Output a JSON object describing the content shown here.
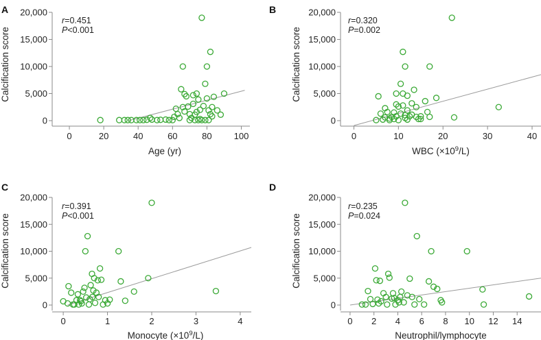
{
  "chart_data": [
    {
      "panel": "A",
      "type": "scatter",
      "xlabel": "Age (yr)",
      "ylabel": "Calcification score",
      "xlim": [
        -10,
        105
      ],
      "ylim": [
        0,
        20000
      ],
      "xticks": [
        0,
        20,
        40,
        60,
        80,
        100
      ],
      "yticks": [
        0,
        5000,
        10000,
        15000,
        20000
      ],
      "ytick_labels": [
        "0",
        "5,000",
        "10,000",
        "15,000",
        "20,000"
      ],
      "stats": {
        "r_label": "r",
        "r_value": "=0.451",
        "p_label": "P",
        "p_value": "<0.001"
      },
      "fit_line": [
        [
          34.5,
          0
        ],
        [
          102,
          5600
        ]
      ],
      "points": [
        [
          18,
          100
        ],
        [
          29,
          100
        ],
        [
          32,
          100
        ],
        [
          34,
          100
        ],
        [
          36,
          100
        ],
        [
          39,
          100
        ],
        [
          41,
          100
        ],
        [
          43,
          100
        ],
        [
          45,
          150
        ],
        [
          47,
          500
        ],
        [
          48,
          200
        ],
        [
          51,
          100
        ],
        [
          53,
          150
        ],
        [
          56,
          200
        ],
        [
          58,
          100
        ],
        [
          60,
          100
        ],
        [
          61,
          700
        ],
        [
          62,
          2200
        ],
        [
          63,
          1200
        ],
        [
          64,
          500
        ],
        [
          65,
          5800
        ],
        [
          66,
          10000
        ],
        [
          66,
          2500
        ],
        [
          67,
          4900
        ],
        [
          67,
          1700
        ],
        [
          68,
          4500
        ],
        [
          69,
          2600
        ],
        [
          70,
          1200
        ],
        [
          71,
          500
        ],
        [
          72,
          3100
        ],
        [
          72,
          4700
        ],
        [
          73,
          1100
        ],
        [
          74,
          5000
        ],
        [
          74,
          1600
        ],
        [
          75,
          3900
        ],
        [
          76,
          2000
        ],
        [
          76,
          300
        ],
        [
          77,
          19000
        ],
        [
          78,
          2700
        ],
        [
          79,
          6800
        ],
        [
          80,
          10000
        ],
        [
          80,
          4100
        ],
        [
          81,
          1900
        ],
        [
          82,
          12700
        ],
        [
          82,
          1200
        ],
        [
          83,
          800
        ],
        [
          83,
          2500
        ],
        [
          84,
          4400
        ],
        [
          86,
          1900
        ],
        [
          88,
          1100
        ],
        [
          90,
          5000
        ],
        [
          70,
          100
        ],
        [
          73,
          100
        ],
        [
          75,
          100
        ],
        [
          77,
          100
        ],
        [
          79,
          100
        ],
        [
          81,
          100
        ]
      ]
    },
    {
      "panel": "B",
      "type": "scatter",
      "xlabel_main": "WBC (×10",
      "xlabel_sup": "9",
      "xlabel_tail": "/L)",
      "ylabel": "Calcification score",
      "xlim": [
        -3,
        42
      ],
      "ylim": [
        0,
        20000
      ],
      "xticks": [
        0,
        10,
        20,
        30,
        40
      ],
      "yticks": [
        0,
        5000,
        10000,
        15000,
        20000
      ],
      "ytick_labels": [
        "0",
        "5,000",
        "10,000",
        "15,000",
        "20,000"
      ],
      "stats": {
        "r_label": "r",
        "r_value": "=0.320",
        "p_label": "P",
        "p_value": "=0.002"
      },
      "fit_line": [
        [
          0,
          -900
        ],
        [
          42,
          8500
        ]
      ],
      "points": [
        [
          5,
          100
        ],
        [
          5.5,
          4500
        ],
        [
          6,
          1300
        ],
        [
          6.5,
          200
        ],
        [
          7,
          600
        ],
        [
          7,
          2300
        ],
        [
          7.5,
          1600
        ],
        [
          8,
          100
        ],
        [
          8.5,
          700
        ],
        [
          9,
          300
        ],
        [
          9,
          1500
        ],
        [
          9.5,
          5000
        ],
        [
          9.5,
          800
        ],
        [
          10,
          100
        ],
        [
          10,
          2600
        ],
        [
          10.5,
          6800
        ],
        [
          10.5,
          1300
        ],
        [
          11,
          12700
        ],
        [
          11,
          5000
        ],
        [
          11,
          2800
        ],
        [
          11.5,
          10000
        ],
        [
          11.5,
          500
        ],
        [
          12,
          4600
        ],
        [
          12,
          1900
        ],
        [
          12.5,
          800
        ],
        [
          13,
          1100
        ],
        [
          13,
          3200
        ],
        [
          13.5,
          5700
        ],
        [
          14,
          700
        ],
        [
          14,
          2500
        ],
        [
          15,
          300
        ],
        [
          15,
          800
        ],
        [
          16,
          3600
        ],
        [
          16.5,
          1600
        ],
        [
          17,
          10000
        ],
        [
          17,
          700
        ],
        [
          18.5,
          4200
        ],
        [
          22,
          19000
        ],
        [
          22.5,
          600
        ],
        [
          32.5,
          2500
        ],
        [
          8,
          400
        ],
        [
          12,
          200
        ],
        [
          14.5,
          300
        ],
        [
          9.5,
          3000
        ],
        [
          11.5,
          1000
        ]
      ]
    },
    {
      "panel": "C",
      "type": "scatter",
      "xlabel_main": "Monocyte (×10",
      "xlabel_sup": "9",
      "xlabel_tail": "/L)",
      "ylabel": "Calcification score",
      "xlim": [
        -0.25,
        4.25
      ],
      "ylim": [
        0,
        20000
      ],
      "xticks": [
        0,
        1,
        2,
        3,
        4
      ],
      "yticks": [
        0,
        5000,
        10000,
        15000,
        20000
      ],
      "ytick_labels": [
        "0",
        "5,000",
        "10,000",
        "15,000",
        "20,000"
      ],
      "stats": {
        "r_label": "r",
        "r_value": "=0.391",
        "p_label": "P",
        "p_value": "<0.001"
      },
      "fit_line": [
        [
          0.1,
          0
        ],
        [
          4.25,
          10700
        ]
      ],
      "points": [
        [
          0,
          700
        ],
        [
          0.1,
          300
        ],
        [
          0.12,
          3500
        ],
        [
          0.18,
          2300
        ],
        [
          0.22,
          100
        ],
        [
          0.25,
          100
        ],
        [
          0.3,
          900
        ],
        [
          0.33,
          2000
        ],
        [
          0.35,
          100
        ],
        [
          0.38,
          900
        ],
        [
          0.42,
          300
        ],
        [
          0.45,
          2500
        ],
        [
          0.48,
          3200
        ],
        [
          0.5,
          10000
        ],
        [
          0.52,
          1400
        ],
        [
          0.55,
          12800
        ],
        [
          0.58,
          100
        ],
        [
          0.6,
          1100
        ],
        [
          0.62,
          3700
        ],
        [
          0.65,
          5800
        ],
        [
          0.68,
          2700
        ],
        [
          0.7,
          5000
        ],
        [
          0.72,
          400
        ],
        [
          0.75,
          2300
        ],
        [
          0.78,
          4600
        ],
        [
          0.8,
          1500
        ],
        [
          0.83,
          6800
        ],
        [
          0.86,
          4700
        ],
        [
          0.9,
          100
        ],
        [
          0.95,
          900
        ],
        [
          1.0,
          300
        ],
        [
          1.05,
          1000
        ],
        [
          1.25,
          10000
        ],
        [
          1.3,
          4400
        ],
        [
          1.4,
          800
        ],
        [
          1.6,
          2500
        ],
        [
          1.92,
          5000
        ],
        [
          2.0,
          19000
        ],
        [
          3.45,
          2600
        ],
        [
          0.4,
          700
        ],
        [
          0.66,
          1500
        ]
      ]
    },
    {
      "panel": "D",
      "type": "scatter",
      "xlabel": "Neutrophil/lymphocyte",
      "ylabel": "Calcification score",
      "xlim": [
        -0.8,
        16
      ],
      "ylim": [
        0,
        20000
      ],
      "xticks": [
        0,
        2,
        4,
        6,
        8,
        10,
        12,
        14
      ],
      "yticks": [
        0,
        5000,
        10000,
        15000,
        20000
      ],
      "ytick_labels": [
        "0",
        "5,000",
        "10,000",
        "15,000",
        "20,000"
      ],
      "stats": {
        "r_label": "r",
        "r_value": "=0.235",
        "p_label": "P",
        "p_value": "=0.024"
      },
      "fit_line": [
        [
          0,
          0
        ],
        [
          16,
          5000
        ]
      ],
      "points": [
        [
          1,
          100
        ],
        [
          1.3,
          100
        ],
        [
          1.5,
          2600
        ],
        [
          1.7,
          1100
        ],
        [
          1.9,
          200
        ],
        [
          2.1,
          6800
        ],
        [
          2.2,
          4600
        ],
        [
          2.3,
          1000
        ],
        [
          2.5,
          4500
        ],
        [
          2.6,
          700
        ],
        [
          2.8,
          2200
        ],
        [
          3,
          1500
        ],
        [
          3.1,
          100
        ],
        [
          3.2,
          5800
        ],
        [
          3.3,
          5100
        ],
        [
          3.5,
          1200
        ],
        [
          3.6,
          2200
        ],
        [
          3.8,
          100
        ],
        [
          4,
          900
        ],
        [
          4.1,
          500
        ],
        [
          4.3,
          2500
        ],
        [
          4.5,
          500
        ],
        [
          4.6,
          19000
        ],
        [
          4.8,
          1800
        ],
        [
          5,
          4900
        ],
        [
          5.2,
          1500
        ],
        [
          5.4,
          100
        ],
        [
          5.6,
          12800
        ],
        [
          5.8,
          1100
        ],
        [
          6.2,
          100
        ],
        [
          6.6,
          4400
        ],
        [
          6.8,
          10000
        ],
        [
          7,
          3400
        ],
        [
          7.3,
          3000
        ],
        [
          7.6,
          900
        ],
        [
          7.7,
          500
        ],
        [
          9.8,
          10000
        ],
        [
          11.1,
          2900
        ],
        [
          11.2,
          100
        ],
        [
          15,
          1600
        ],
        [
          3.7,
          1300
        ],
        [
          4.2,
          1500
        ],
        [
          2.4,
          300
        ]
      ]
    }
  ]
}
